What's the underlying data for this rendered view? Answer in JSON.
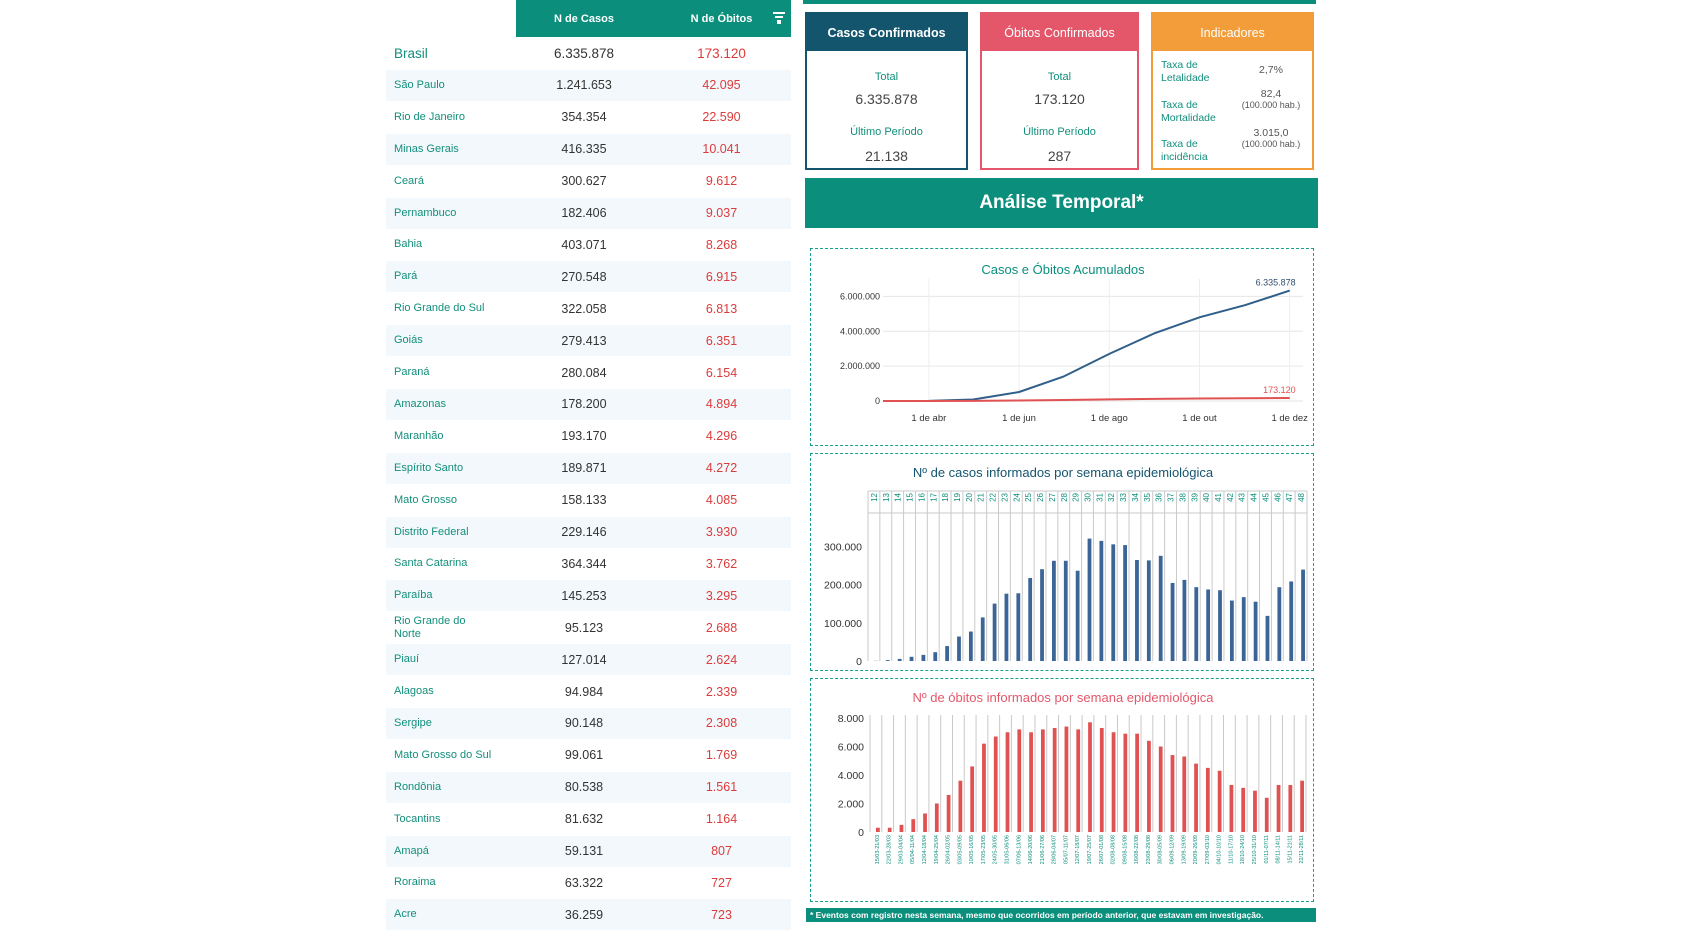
{
  "table": {
    "headers": {
      "cases": "N de Casos",
      "deaths": "N de Óbitos"
    },
    "total": {
      "name": "Brasil",
      "cases": "6.335.878",
      "deaths": "173.120"
    },
    "rows": [
      {
        "name": "São Paulo",
        "cases": "1.241.653",
        "deaths": "42.095"
      },
      {
        "name": "Rio de Janeiro",
        "cases": "354.354",
        "deaths": "22.590"
      },
      {
        "name": "Minas Gerais",
        "cases": "416.335",
        "deaths": "10.041"
      },
      {
        "name": "Ceará",
        "cases": "300.627",
        "deaths": "9.612"
      },
      {
        "name": "Pernambuco",
        "cases": "182.406",
        "deaths": "9.037"
      },
      {
        "name": "Bahia",
        "cases": "403.071",
        "deaths": "8.268"
      },
      {
        "name": "Pará",
        "cases": "270.548",
        "deaths": "6.915"
      },
      {
        "name": "Rio Grande do Sul",
        "cases": "322.058",
        "deaths": "6.813"
      },
      {
        "name": "Goiás",
        "cases": "279.413",
        "deaths": "6.351"
      },
      {
        "name": "Paraná",
        "cases": "280.084",
        "deaths": "6.154"
      },
      {
        "name": "Amazonas",
        "cases": "178.200",
        "deaths": "4.894"
      },
      {
        "name": "Maranhão",
        "cases": "193.170",
        "deaths": "4.296"
      },
      {
        "name": "Espírito Santo",
        "cases": "189.871",
        "deaths": "4.272"
      },
      {
        "name": "Mato Grosso",
        "cases": "158.133",
        "deaths": "4.085"
      },
      {
        "name": "Distrito Federal",
        "cases": "229.146",
        "deaths": "3.930"
      },
      {
        "name": "Santa Catarina",
        "cases": "364.344",
        "deaths": "3.762"
      },
      {
        "name": "Paraíba",
        "cases": "145.253",
        "deaths": "3.295"
      },
      {
        "name": "Rio Grande do Norte",
        "cases": "95.123",
        "deaths": "2.688"
      },
      {
        "name": "Piauí",
        "cases": "127.014",
        "deaths": "2.624"
      },
      {
        "name": "Alagoas",
        "cases": "94.984",
        "deaths": "2.339"
      },
      {
        "name": "Sergipe",
        "cases": "90.148",
        "deaths": "2.308"
      },
      {
        "name": "Mato Grosso do Sul",
        "cases": "99.061",
        "deaths": "1.769"
      },
      {
        "name": "Rondônia",
        "cases": "80.538",
        "deaths": "1.561"
      },
      {
        "name": "Tocantins",
        "cases": "81.632",
        "deaths": "1.164"
      },
      {
        "name": "Amapá",
        "cases": "59.131",
        "deaths": "807"
      },
      {
        "name": "Roraima",
        "cases": "63.322",
        "deaths": "727"
      },
      {
        "name": "Acre",
        "cases": "36.259",
        "deaths": "723"
      }
    ]
  },
  "cards": {
    "confirmed": {
      "title": "Casos Confirmados",
      "total_label": "Total",
      "total": "6.335.878",
      "period_label": "Último Período",
      "period": "21.138"
    },
    "deaths": {
      "title": "Óbitos Confirmados",
      "total_label": "Total",
      "total": "173.120",
      "period_label": "Último Período",
      "period": "287"
    },
    "indicators": {
      "title": "Indicadores",
      "lethality_label": "Taxa de Letalidade",
      "lethality": "2,7%",
      "mortality_label": "Taxa de Mortalidade",
      "mortality": "82,4",
      "mortality_unit": "(100.000 hab.)",
      "incidence_label": "Taxa de incidência",
      "incidence": "3.015,0",
      "incidence_unit": "(100.000 hab.)"
    }
  },
  "section_title": "Análise Temporal*",
  "footnote": "* Eventos com registro nesta semana, mesmo que ocorridos em período anterior, que estavam em investigação.",
  "colors": {
    "teal": "#0b8f7c",
    "navy": "#2f5f8a",
    "red": "#e4576a",
    "orange": "#f39c3a"
  },
  "chart_data": [
    {
      "type": "line",
      "title": "Casos e Óbitos Acumulados",
      "x_ticks": [
        "1 de abr",
        "1 de jun",
        "1 de ago",
        "1 de out",
        "1 de dez"
      ],
      "y_ticks": [
        "0",
        "2.000.000",
        "4.000.000",
        "6.000.000"
      ],
      "ylim": [
        0,
        7000000
      ],
      "x": [
        "2020-03-01",
        "2020-04-01",
        "2020-05-01",
        "2020-06-01",
        "2020-07-01",
        "2020-08-01",
        "2020-09-01",
        "2020-10-01",
        "2020-11-01",
        "2020-12-01"
      ],
      "series": [
        {
          "values": [
            0,
            6000,
            87000,
            515000,
            1400000,
            2700000,
            3900000,
            4800000,
            5500000,
            6335878
          ],
          "end_label": "6.335.878"
        },
        {
          "values": [
            0,
            200,
            6000,
            30000,
            60000,
            93000,
            122000,
            144000,
            160000,
            173120
          ],
          "end_label": "173.120"
        }
      ]
    },
    {
      "type": "bar",
      "title": "Nº de casos informados por semana epidemiológica",
      "categories": [
        "12",
        "13",
        "14",
        "15",
        "16",
        "17",
        "18",
        "19",
        "20",
        "21",
        "22",
        "23",
        "24",
        "25",
        "26",
        "27",
        "28",
        "29",
        "30",
        "31",
        "32",
        "33",
        "34",
        "35",
        "36",
        "37",
        "38",
        "39",
        "40",
        "41",
        "42",
        "43",
        "44",
        "45",
        "46",
        "47",
        "48"
      ],
      "values": [
        500,
        2300,
        5500,
        11000,
        16000,
        23000,
        39000,
        64000,
        77000,
        114000,
        150000,
        176000,
        177000,
        217000,
        240000,
        262000,
        262000,
        236000,
        320000,
        314000,
        305000,
        303000,
        264000,
        263000,
        275000,
        204000,
        212000,
        193000,
        187000,
        185000,
        158000,
        167000,
        155000,
        118000,
        193000,
        208000,
        239000
      ],
      "y_ticks": [
        "0",
        "100.000",
        "200.000",
        "300.000"
      ],
      "ylim": [
        0,
        400000
      ]
    },
    {
      "type": "bar",
      "title": "Nº de óbitos informados por semana epidemiológica",
      "categories": [
        "15/03-21/03",
        "22/03-28/03",
        "29/03-04/04",
        "05/04-11/04",
        "12/04-18/04",
        "19/04-25/04",
        "26/04-02/05",
        "03/05-09/05",
        "10/05-16/05",
        "17/05-23/05",
        "24/05-30/05",
        "31/05-06/06",
        "07/06-13/06",
        "14/06-20/06",
        "21/06-27/06",
        "28/06-04/07",
        "05/07-11/07",
        "12/07-18/07",
        "19/07-25/07",
        "26/07-01/08",
        "02/08-08/08",
        "09/08-15/08",
        "16/08-22/08",
        "23/08-29/08",
        "30/08-05/09",
        "06/09-12/09",
        "13/09-19/09",
        "20/09-26/09",
        "27/09-03/10",
        "04/10-10/10",
        "11/10-17/10",
        "18/10-24/10",
        "25/10-31/10",
        "01/11-07/11",
        "08/11-14/11",
        "15/11-21/11",
        "22/11-28/11"
      ],
      "values": [
        300,
        300,
        500,
        900,
        1300,
        2000,
        2600,
        3600,
        4600,
        6200,
        6700,
        7000,
        7200,
        7000,
        7200,
        7300,
        7400,
        7200,
        7700,
        7300,
        7000,
        6900,
        6900,
        6400,
        6000,
        5400,
        5300,
        4800,
        4500,
        4300,
        3300,
        3100,
        2900,
        2400,
        3300,
        3300,
        3600
      ],
      "y_ticks": [
        "0",
        "2.000",
        "4.000",
        "6.000",
        "8.000"
      ],
      "ylim": [
        0,
        8000
      ]
    }
  ]
}
